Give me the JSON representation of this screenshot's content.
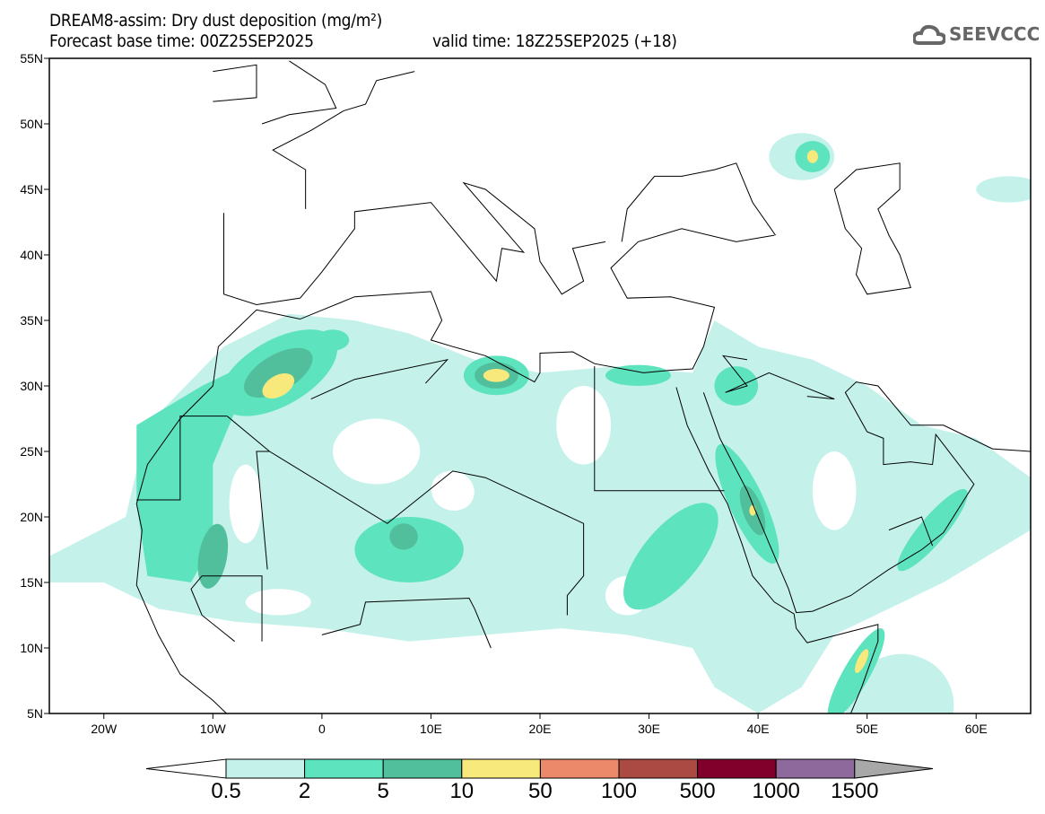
{
  "header": {
    "title": "DREAM8-assim: Dry dust deposition (mg/m²)",
    "base_time": "Forecast base time: 00Z25SEP2025",
    "valid_time": "valid time: 18Z25SEP2025 (+18)"
  },
  "logo": {
    "text": "SEEVCCC"
  },
  "map": {
    "lon_range": [
      -25,
      65
    ],
    "lat_range": [
      5,
      55
    ],
    "lat_ticks": [
      {
        "v": 55,
        "label": "55N"
      },
      {
        "v": 50,
        "label": "50N"
      },
      {
        "v": 45,
        "label": "45N"
      },
      {
        "v": 40,
        "label": "40N"
      },
      {
        "v": 35,
        "label": "35N"
      },
      {
        "v": 30,
        "label": "30N"
      },
      {
        "v": 25,
        "label": "25N"
      },
      {
        "v": 20,
        "label": "20N"
      },
      {
        "v": 15,
        "label": "15N"
      },
      {
        "v": 10,
        "label": "10N"
      },
      {
        "v": 5,
        "label": "5N"
      }
    ],
    "lon_ticks": [
      {
        "v": -20,
        "label": "20W"
      },
      {
        "v": -10,
        "label": "10W"
      },
      {
        "v": 0,
        "label": "0"
      },
      {
        "v": 10,
        "label": "10E"
      },
      {
        "v": 20,
        "label": "20E"
      },
      {
        "v": 30,
        "label": "30E"
      },
      {
        "v": 40,
        "label": "40E"
      },
      {
        "v": 50,
        "label": "50E"
      },
      {
        "v": 60,
        "label": "60E"
      }
    ]
  },
  "legend": {
    "labels": [
      "0.5",
      "2",
      "5",
      "10",
      "50",
      "100",
      "500",
      "1000",
      "1500"
    ],
    "colors": [
      "#c4f2ea",
      "#5ee3bf",
      "#52bf9c",
      "#f7e97b",
      "#ec896a",
      "#ab4a42",
      "#80002b",
      "#8e699b"
    ],
    "under_color": "#ffffff",
    "over_color": "#a8a8a8"
  }
}
